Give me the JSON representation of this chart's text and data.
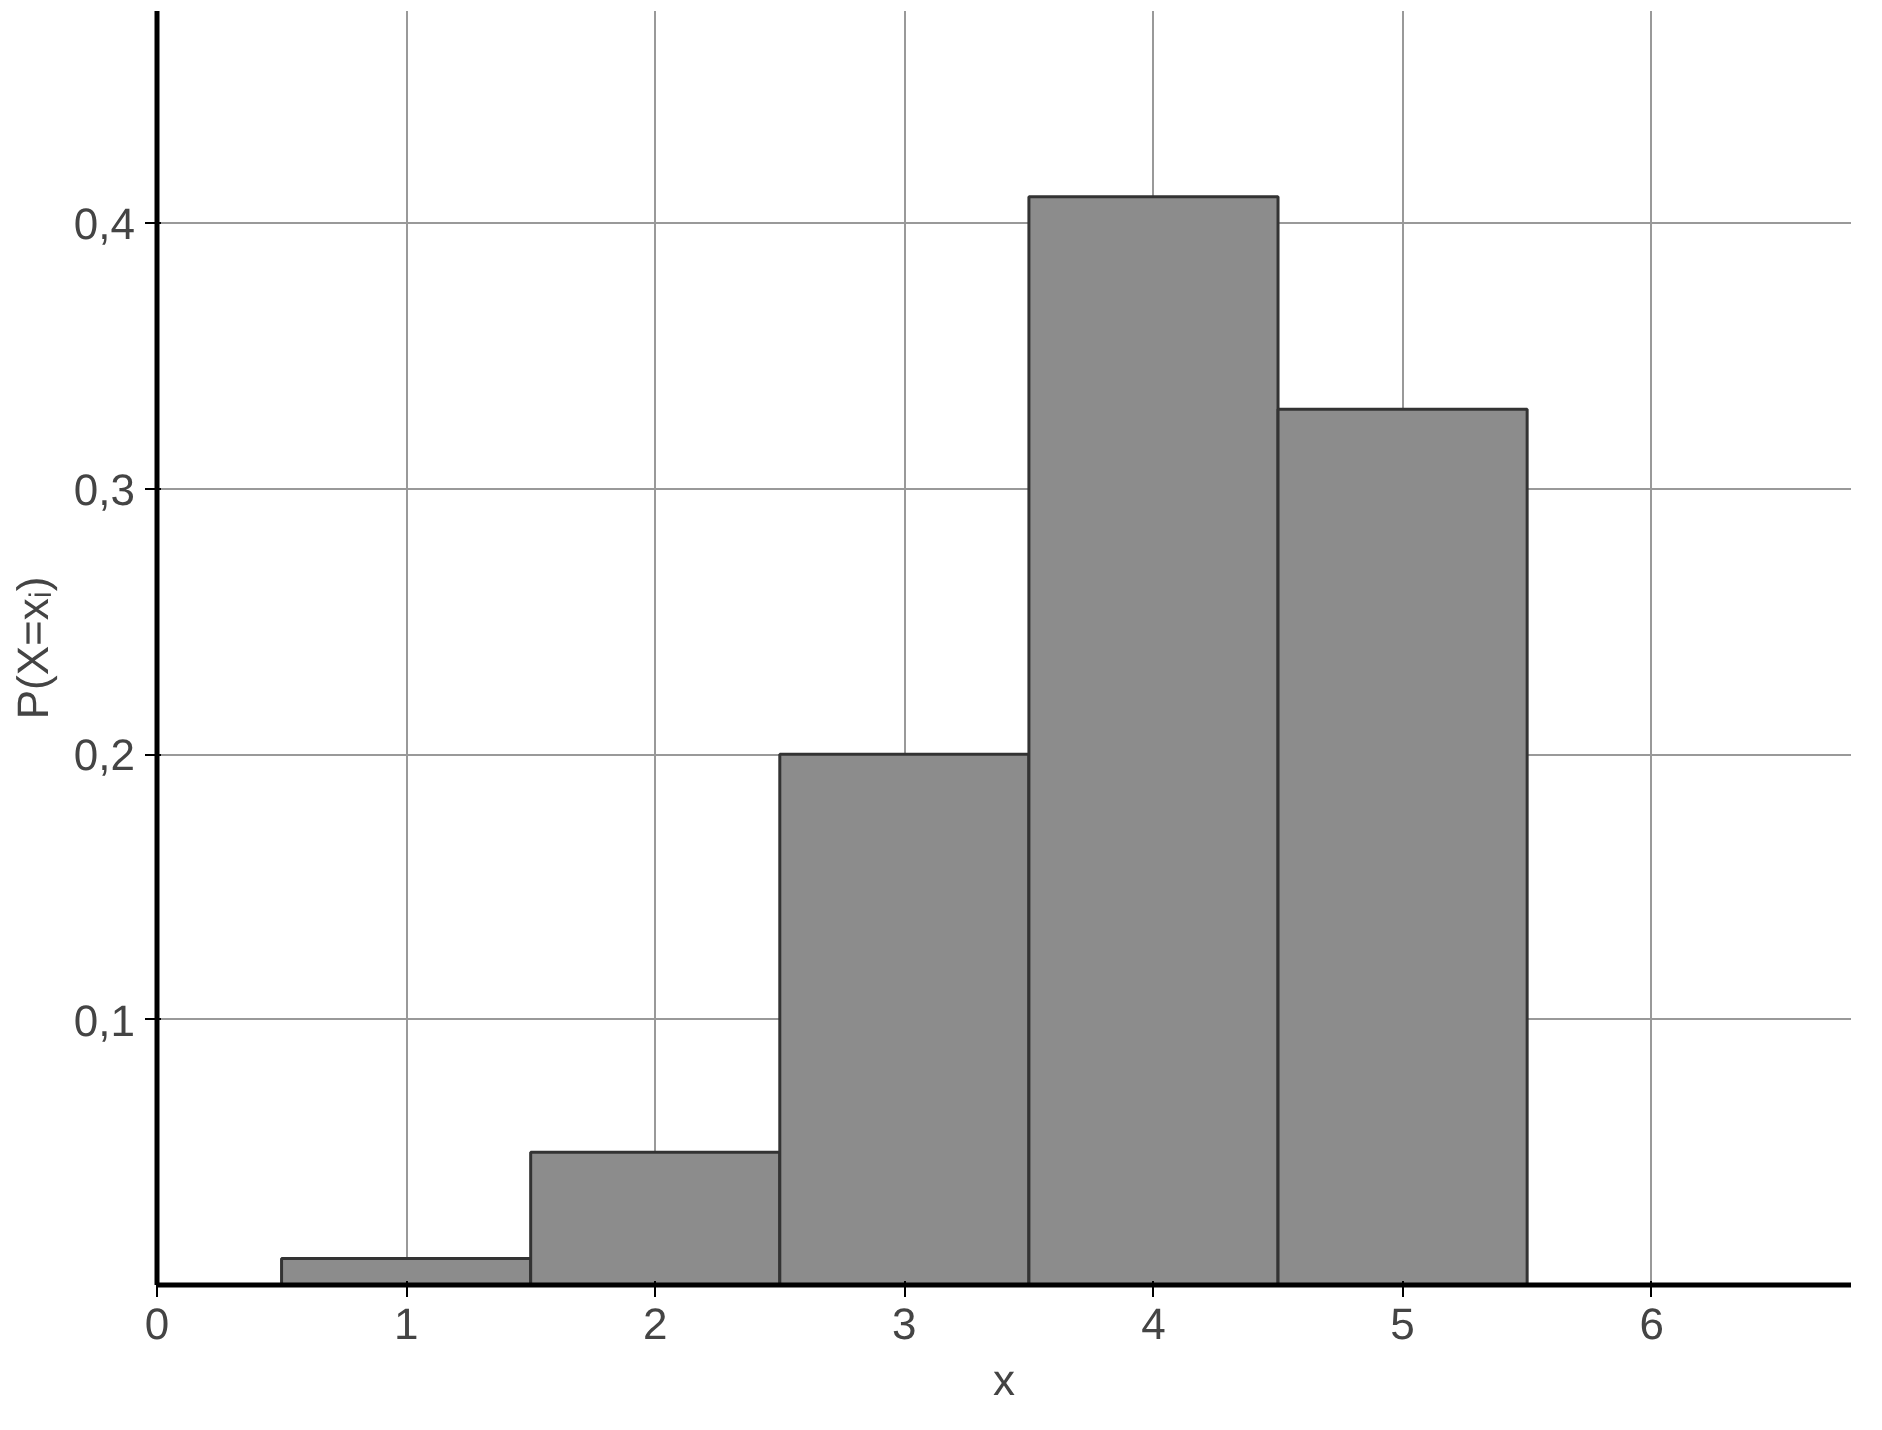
{
  "chart_data": {
    "type": "histogram",
    "xlabel": "x",
    "ylabel": "P(X=xᵢ)",
    "bins": [
      0.5,
      1.5,
      2.5,
      3.5,
      4.5,
      5.5
    ],
    "values": [
      0.01,
      0.05,
      0.2,
      0.41,
      0.33
    ],
    "color": "#8c8c8c",
    "xlim": [
      0,
      6.8
    ],
    "ylim": [
      0,
      0.48
    ],
    "xticks": [
      0,
      1,
      2,
      3,
      4,
      5,
      6
    ],
    "yticks": [
      {
        "value": 0.1,
        "label": "0,1"
      },
      {
        "value": 0.2,
        "label": "0,2"
      },
      {
        "value": 0.3,
        "label": "0,3"
      },
      {
        "value": 0.4,
        "label": "0,4"
      }
    ],
    "grid": true
  }
}
